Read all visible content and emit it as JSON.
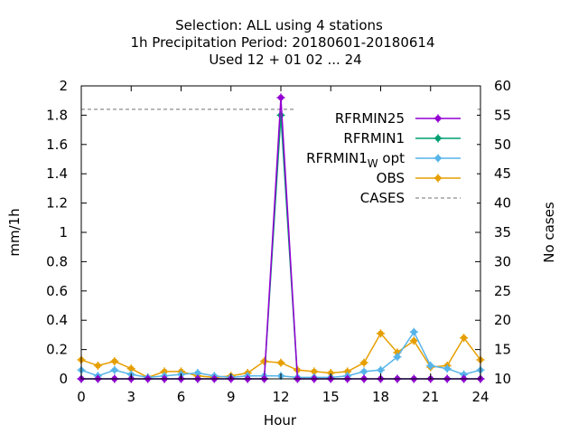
{
  "chart_data": {
    "type": "line",
    "title_lines": [
      "Selection: ALL using     4 stations",
      "1h Precipitation   Period: 20180601-20180614",
      "Used  12 + 01 02 ... 24"
    ],
    "xlabel": "Hour",
    "ylabel": "mm/1h",
    "y2label": "No cases",
    "xlim": [
      0,
      24
    ],
    "ylim": [
      0,
      2
    ],
    "y2lim": [
      10,
      60
    ],
    "xticks": [
      "0",
      "3",
      "6",
      "9",
      "12",
      "15",
      "18",
      "21",
      "24"
    ],
    "yticks": [
      "0",
      "0.2",
      "0.4",
      "0.6",
      "0.8",
      "1",
      "1.2",
      "1.4",
      "1.6",
      "1.8",
      "2"
    ],
    "y2ticks": [
      "10",
      "15",
      "20",
      "25",
      "30",
      "35",
      "40",
      "45",
      "50",
      "55",
      "60"
    ],
    "legend_position": "top-right",
    "x": [
      0,
      1,
      2,
      3,
      4,
      5,
      6,
      7,
      8,
      9,
      10,
      11,
      12,
      13,
      14,
      15,
      16,
      17,
      18,
      19,
      20,
      21,
      22,
      23,
      24
    ],
    "series": [
      {
        "name": "RFRMIN25",
        "color": "#9400d3",
        "axis": "y1",
        "values": [
          0,
          0,
          0,
          0,
          0,
          0,
          0,
          0,
          0,
          0,
          0,
          0,
          1.92,
          0,
          0,
          0,
          0,
          0,
          0,
          0,
          0,
          0,
          0,
          0,
          0
        ]
      },
      {
        "name": "RFRMIN1",
        "color": "#009e73",
        "axis": "y1",
        "values": [
          0,
          0,
          0,
          0,
          0,
          0,
          0,
          0,
          0,
          0,
          0,
          0,
          1.8,
          0,
          0,
          0,
          0,
          0,
          0,
          0,
          0,
          0,
          0,
          0,
          0
        ]
      },
      {
        "name_main": "RFRMIN1",
        "name_sub": "W",
        "name_suffix": " opt",
        "color": "#56b4e9",
        "axis": "y1",
        "values": [
          0.06,
          0.02,
          0.06,
          0.03,
          0.01,
          0.02,
          0.03,
          0.04,
          0.02,
          0.01,
          0.02,
          0.02,
          0.02,
          0.01,
          0.01,
          0.01,
          0.02,
          0.05,
          0.06,
          0.15,
          0.32,
          0.09,
          0.07,
          0.03,
          0.06
        ]
      },
      {
        "name": "OBS",
        "color": "#e69f00",
        "axis": "y1",
        "values": [
          0.13,
          0.09,
          0.12,
          0.07,
          0.01,
          0.05,
          0.05,
          0.02,
          0.01,
          0.02,
          0.04,
          0.12,
          0.11,
          0.06,
          0.05,
          0.04,
          0.05,
          0.11,
          0.31,
          0.18,
          0.26,
          0.08,
          0.09,
          0.28,
          0.13
        ]
      },
      {
        "name": "CASES",
        "color": "#a0a0a0",
        "axis": "y2",
        "dashed": true,
        "values": [
          56,
          56,
          56,
          56,
          56,
          56,
          56,
          56,
          56,
          56,
          56,
          56,
          56,
          56,
          55,
          55,
          56,
          56,
          56,
          56,
          56,
          56,
          56,
          56,
          56
        ]
      }
    ]
  }
}
